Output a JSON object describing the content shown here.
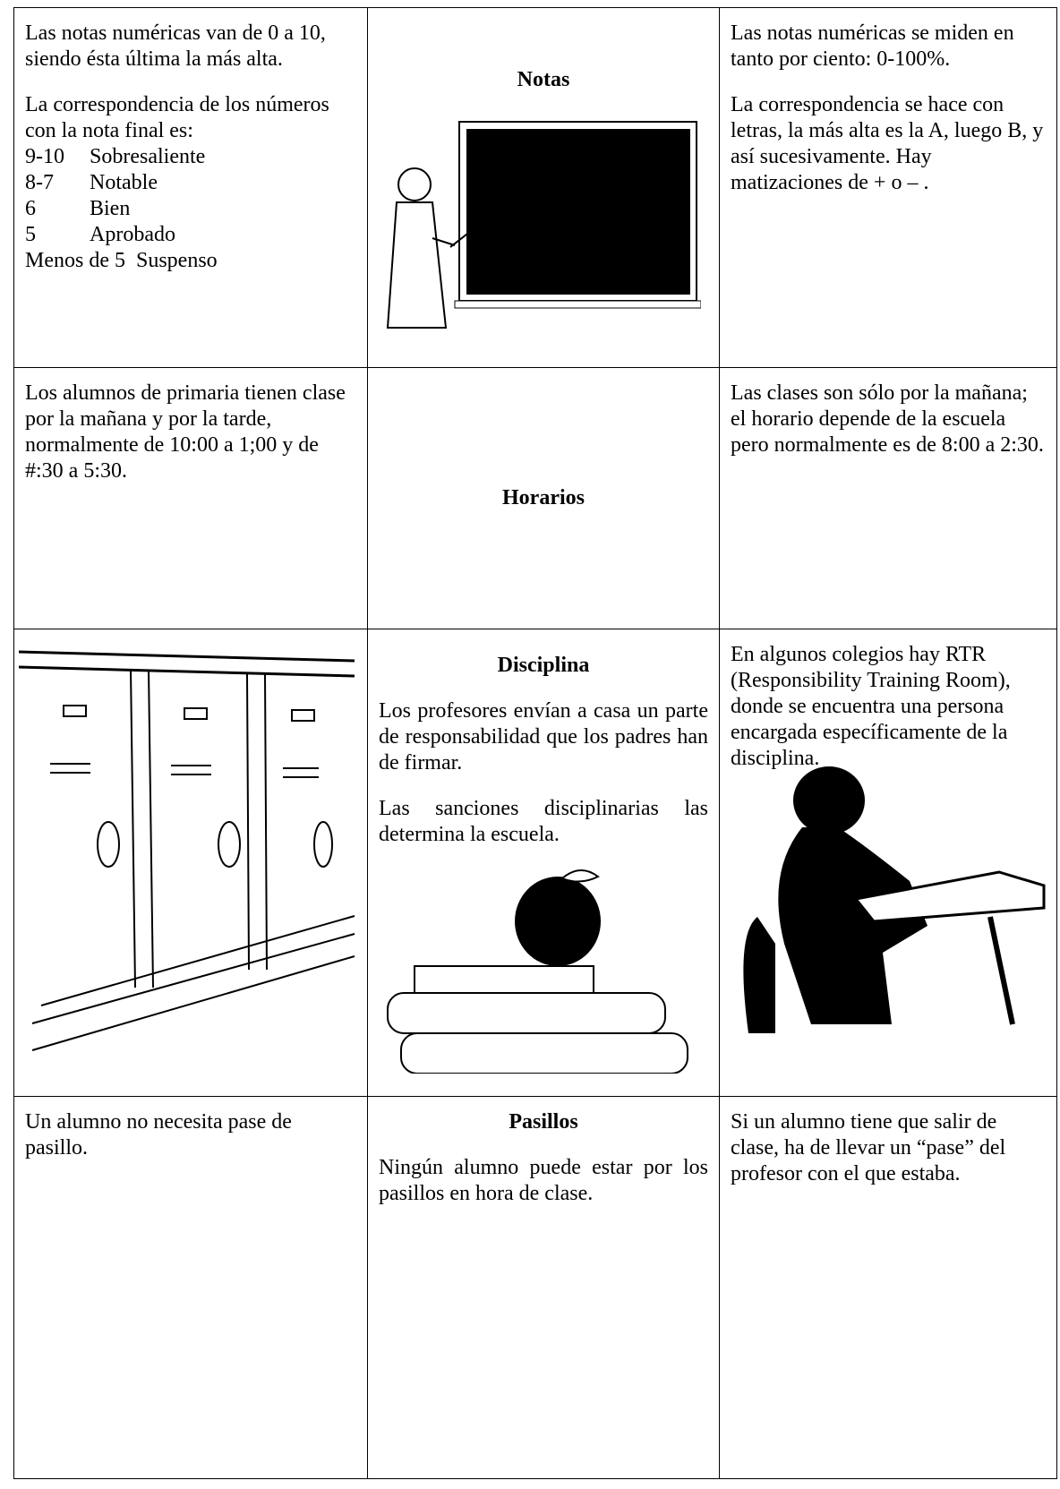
{
  "table": {
    "rows": [
      {
        "left": {
          "paragraphs": [
            "Las notas numéricas van de 0 a 10, siendo ésta última la más alta.",
            "La correspondencia de los números con la nota final es:"
          ],
          "grades": [
            {
              "range": "9-10",
              "label": "Sobresaliente"
            },
            {
              "range": "8-7",
              "label": "Notable"
            },
            {
              "range": "6",
              "label": "Bien"
            },
            {
              "range": "5",
              "label": "Aprobado"
            },
            {
              "range": "Menos de 5",
              "label": "Suspenso"
            }
          ]
        },
        "middle": {
          "title": "Notas"
        },
        "right": {
          "paragraphs": [
            "Las notas numéricas se miden en tanto por ciento: 0-100%.",
            "La correspondencia se hace con letras, la más alta es la A, luego B, y así sucesivamente. Hay matizaciones de + o – ."
          ]
        }
      },
      {
        "left": {
          "paragraphs": [
            "Los alumnos de primaria tienen clase por la mañana y por la tarde, normalmente de 10:00 a 1;00 y de #:30 a 5:30."
          ]
        },
        "middle": {
          "title": "Horarios"
        },
        "right": {
          "paragraphs": [
            "Las clases son sólo por la mañana; el horario depende de la escuela pero normalmente es de 8:00 a 2:30."
          ]
        }
      },
      {
        "middle": {
          "title": "Disciplina",
          "paragraphs": [
            "Los profesores envían a casa un parte de responsabilidad que los padres han de firmar.",
            "Las sanciones disciplinarias las determina la escuela."
          ]
        },
        "right": {
          "paragraphs": [
            "En algunos colegios hay RTR (Responsibility Training Room), donde se encuentra una persona encargada específicamente de la disciplina."
          ]
        }
      },
      {
        "left": {
          "paragraphs": [
            "Un alumno no necesita pase de pasillo."
          ]
        },
        "middle": {
          "title": "Pasillos",
          "paragraphs": [
            "Ningún alumno puede estar por los pasillos en hora de clase."
          ]
        },
        "right": {
          "paragraphs": [
            "Si un alumno tiene que salir de clase, ha de llevar un “pase” del profesor con el que estaba."
          ]
        }
      }
    ]
  }
}
